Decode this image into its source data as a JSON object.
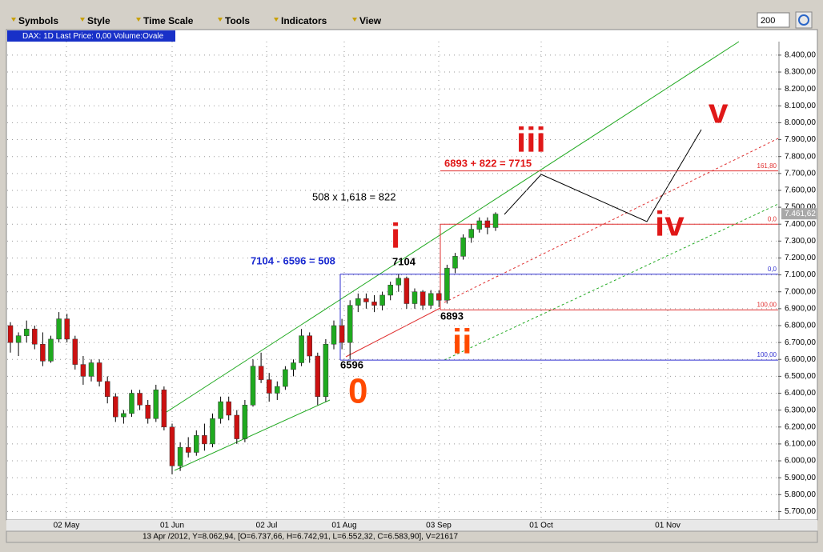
{
  "toolbar": {
    "menus": [
      "Symbols",
      "Style",
      "Time Scale",
      "Tools",
      "Indicators",
      "View"
    ],
    "zoom": "200"
  },
  "chart_data": {
    "type": "candlestick",
    "title": "DAX: 1D Last Price: 0,00 Volume:Ovale",
    "status": "13 Apr /2012, Y=8.062,94, [O=6.737,66, H=6.742,91, L=6.552,32, C=6.583,90], V=21617",
    "x_labels": [
      "02 May",
      "01 Jun",
      "02 Jul",
      "01 Aug",
      "03 Sep",
      "01 Oct",
      "01 Nov"
    ],
    "ylim": [
      5650,
      8480
    ],
    "yticks": [
      {
        "value": 5700,
        "label": "5.700,00"
      },
      {
        "value": 5800,
        "label": "5.800,00"
      },
      {
        "value": 5900,
        "label": "5.900,00"
      },
      {
        "value": 6000,
        "label": "6.000,00"
      },
      {
        "value": 6100,
        "label": "6.100,00"
      },
      {
        "value": 6200,
        "label": "6.200,00"
      },
      {
        "value": 6300,
        "label": "6.300,00"
      },
      {
        "value": 6400,
        "label": "6.400,00"
      },
      {
        "value": 6500,
        "label": "6.500,00"
      },
      {
        "value": 6600,
        "label": "6.600,00"
      },
      {
        "value": 6700,
        "label": "6.700,00"
      },
      {
        "value": 6800,
        "label": "6.800,00"
      },
      {
        "value": 6900,
        "label": "6.900,00"
      },
      {
        "value": 7000,
        "label": "7.000,00"
      },
      {
        "value": 7100,
        "label": "7.100,00"
      },
      {
        "value": 7200,
        "label": "7.200,00"
      },
      {
        "value": 7300,
        "label": "7.300,00"
      },
      {
        "value": 7400,
        "label": "7.400,00"
      },
      {
        "value": 7500,
        "label": "7.500,00"
      },
      {
        "value": 7600,
        "label": "7.600,00"
      },
      {
        "value": 7700,
        "label": "7.700,00"
      },
      {
        "value": 7800,
        "label": "7.800,00"
      },
      {
        "value": 7900,
        "label": "7.900,00"
      },
      {
        "value": 8000,
        "label": "8.000,00"
      },
      {
        "value": 8100,
        "label": "8.100,00"
      },
      {
        "value": 8200,
        "label": "8.200,00"
      },
      {
        "value": 8300,
        "label": "8.300,00"
      },
      {
        "value": 8400,
        "label": "8.400,00"
      }
    ],
    "grid": true,
    "up_color": "#1faa1f",
    "down_color": "#cc1111",
    "last_price": {
      "value": 7461.62,
      "label": "7.461,62"
    },
    "candles": [
      [
        6800,
        6820,
        6640,
        6700
      ],
      [
        6700,
        6760,
        6620,
        6740
      ],
      [
        6740,
        6830,
        6700,
        6780
      ],
      [
        6780,
        6800,
        6660,
        6690
      ],
      [
        6690,
        6760,
        6560,
        6590
      ],
      [
        6590,
        6740,
        6580,
        6720
      ],
      [
        6720,
        6880,
        6700,
        6840
      ],
      [
        6840,
        6870,
        6700,
        6720
      ],
      [
        6720,
        6740,
        6540,
        6570
      ],
      [
        6570,
        6620,
        6450,
        6500
      ],
      [
        6500,
        6600,
        6470,
        6580
      ],
      [
        6580,
        6600,
        6440,
        6470
      ],
      [
        6470,
        6500,
        6340,
        6380
      ],
      [
        6380,
        6400,
        6230,
        6260
      ],
      [
        6260,
        6300,
        6220,
        6280
      ],
      [
        6280,
        6420,
        6260,
        6400
      ],
      [
        6400,
        6420,
        6300,
        6330
      ],
      [
        6330,
        6360,
        6220,
        6250
      ],
      [
        6250,
        6450,
        6230,
        6420
      ],
      [
        6420,
        6440,
        6180,
        6200
      ],
      [
        6200,
        6220,
        5920,
        5970
      ],
      [
        5970,
        6110,
        5940,
        6080
      ],
      [
        6080,
        6140,
        6020,
        6050
      ],
      [
        6050,
        6180,
        6030,
        6150
      ],
      [
        6150,
        6220,
        6060,
        6100
      ],
      [
        6100,
        6280,
        6080,
        6250
      ],
      [
        6250,
        6380,
        6220,
        6350
      ],
      [
        6350,
        6380,
        6240,
        6270
      ],
      [
        6270,
        6300,
        6100,
        6130
      ],
      [
        6130,
        6360,
        6110,
        6330
      ],
      [
        6330,
        6600,
        6320,
        6560
      ],
      [
        6560,
        6640,
        6460,
        6480
      ],
      [
        6480,
        6520,
        6350,
        6400
      ],
      [
        6400,
        6470,
        6360,
        6440
      ],
      [
        6440,
        6560,
        6420,
        6540
      ],
      [
        6540,
        6600,
        6500,
        6580
      ],
      [
        6580,
        6780,
        6560,
        6740
      ],
      [
        6740,
        6760,
        6580,
        6620
      ],
      [
        6620,
        6640,
        6330,
        6380
      ],
      [
        6380,
        6720,
        6350,
        6690
      ],
      [
        6690,
        6830,
        6660,
        6800
      ],
      [
        6800,
        6840,
        6660,
        6700
      ],
      [
        6700,
        6950,
        6600,
        6920
      ],
      [
        6920,
        6990,
        6880,
        6960
      ],
      [
        6960,
        6990,
        6900,
        6940
      ],
      [
        6940,
        6980,
        6880,
        6920
      ],
      [
        6920,
        7000,
        6890,
        6980
      ],
      [
        6980,
        7060,
        6950,
        7040
      ],
      [
        7040,
        7104,
        7000,
        7080
      ],
      [
        7080,
        7090,
        6900,
        6930
      ],
      [
        6930,
        7020,
        6900,
        7000
      ],
      [
        7000,
        7010,
        6893,
        6920
      ],
      [
        6920,
        7010,
        6900,
        6990
      ],
      [
        6990,
        7010,
        6910,
        6950
      ],
      [
        6950,
        7160,
        6930,
        7140
      ],
      [
        7140,
        7230,
        7110,
        7210
      ],
      [
        7210,
        7340,
        7190,
        7320
      ],
      [
        7320,
        7400,
        7290,
        7370
      ],
      [
        7370,
        7440,
        7350,
        7420
      ],
      [
        7420,
        7440,
        7340,
        7380
      ],
      [
        7380,
        7470,
        7360,
        7460
      ]
    ],
    "levels": [
      {
        "value": 7715,
        "label": "161,80",
        "color": "#e03030"
      },
      {
        "value": 7400,
        "label": "0,0",
        "color": "#e03030"
      },
      {
        "value": 6893,
        "label": "100,00",
        "color": "#e03030"
      },
      {
        "value": 7104,
        "label": "0,0",
        "color": "#3030d0"
      },
      {
        "value": 6596,
        "label": "100,00",
        "color": "#3030d0"
      }
    ],
    "annotations": {
      "calc_fib": "508 x 1,618 = 822",
      "calc_range": "7104 - 6596 = 508",
      "calc_target": "6893 + 822 = 7715",
      "p7104": "7104",
      "p6893": "6893",
      "p6596": "6596"
    },
    "waves": [
      "0",
      "i",
      "ii",
      "iii",
      "iv",
      "v"
    ]
  }
}
